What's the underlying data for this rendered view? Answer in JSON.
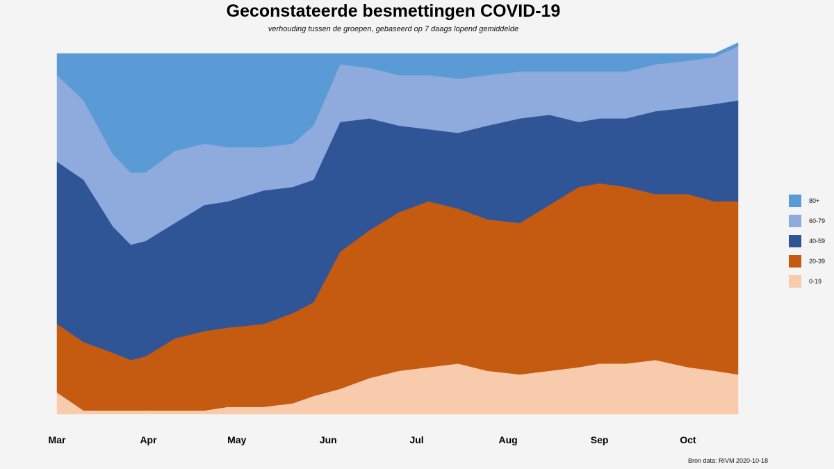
{
  "title": "Geconstateerde besmettingen COVID-19",
  "subtitle": "verhouding tussen de groepen, gebaseerd op 7 daags lopend gemiddelde",
  "source": "Bron data: RIVM  2020-10-18",
  "chart_data": {
    "type": "area",
    "stacked": true,
    "normalized_to_100_percent": true,
    "title": "Geconstateerde besmettingen COVID-19",
    "subtitle": "verhouding tussen de groepen, gebaseerd op 7 daags lopend gemiddelde",
    "xlabel": "",
    "ylabel": "",
    "x_tick_labels": [
      "Mar",
      "Apr",
      "May",
      "Jun",
      "Jul",
      "Aug",
      "Sep",
      "Oct"
    ],
    "x": [
      "2020-03-01",
      "2020-03-10",
      "2020-03-20",
      "2020-03-26",
      "2020-03-31",
      "2020-04-10",
      "2020-04-20",
      "2020-04-28",
      "2020-05-10",
      "2020-05-20",
      "2020-05-27",
      "2020-06-05",
      "2020-06-15",
      "2020-06-25",
      "2020-07-05",
      "2020-07-15",
      "2020-07-25",
      "2020-08-05",
      "2020-08-15",
      "2020-08-25",
      "2020-09-01",
      "2020-09-10",
      "2020-09-20",
      "2020-10-01",
      "2020-10-10",
      "2020-10-18"
    ],
    "ylim": [
      0,
      100
    ],
    "grid": false,
    "legend_position": "right",
    "series": [
      {
        "name": "0-19",
        "color": "#f8cbad",
        "values": [
          6,
          1,
          1,
          1,
          1,
          1,
          1,
          2,
          2,
          3,
          5,
          7,
          10,
          12,
          13,
          14,
          12,
          11,
          12,
          13,
          14,
          14,
          15,
          13,
          12,
          11
        ]
      },
      {
        "name": "20-39",
        "color": "#c55a11",
        "values": [
          19,
          19,
          16,
          14,
          15,
          20,
          22,
          22,
          23,
          25,
          26,
          38,
          41,
          44,
          46,
          43,
          42,
          42,
          46,
          50,
          50,
          49,
          46,
          48,
          47,
          48
        ]
      },
      {
        "name": "40-59",
        "color": "#2f5597",
        "values": [
          45,
          45,
          35,
          32,
          32,
          32,
          35,
          35,
          37,
          35,
          34,
          36,
          31,
          24,
          20,
          21,
          26,
          29,
          25,
          18,
          18,
          19,
          23,
          24,
          27,
          28
        ]
      },
      {
        "name": "60-79",
        "color": "#8faadc",
        "values": [
          24,
          22,
          20,
          20,
          19,
          20,
          17,
          15,
          12,
          12,
          15,
          16,
          14,
          14,
          15,
          15,
          14,
          13,
          12,
          14,
          13,
          13,
          13,
          13,
          13,
          15
        ]
      },
      {
        "name": "80+",
        "color": "#5b9bd5",
        "values": [
          6,
          13,
          28,
          33,
          33,
          27,
          25,
          26,
          26,
          25,
          20,
          3,
          4,
          6,
          6,
          7,
          6,
          5,
          5,
          5,
          5,
          5,
          3,
          2,
          1,
          1
        ]
      }
    ]
  }
}
